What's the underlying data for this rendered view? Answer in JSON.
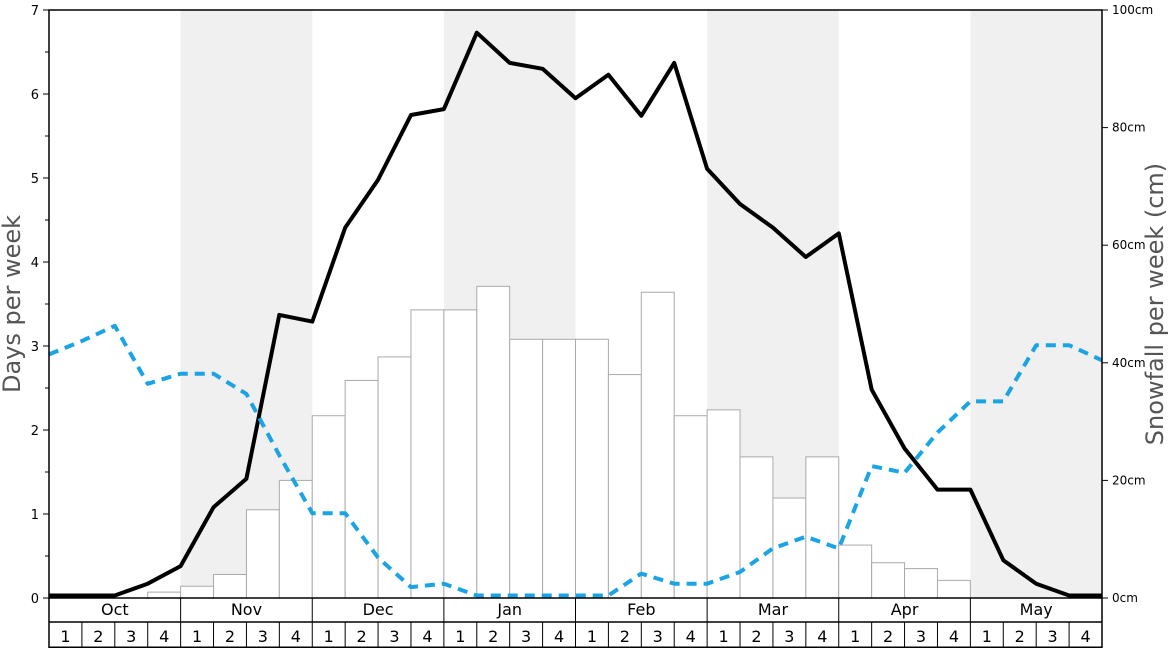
{
  "chart_data": {
    "type": "bar+line",
    "title": "",
    "ylabel": "Days per week",
    "ylabel_right": "Snowfall per week (cm)",
    "ylim": [
      0,
      7
    ],
    "ylim_right": [
      0,
      100
    ],
    "yticks": [
      "0",
      "1",
      "2",
      "3",
      "4",
      "5",
      "6",
      "7"
    ],
    "yticks_right": [
      "0cm",
      "20cm",
      "40cm",
      "60cm",
      "80cm",
      "100cm"
    ],
    "months": [
      "Oct",
      "Nov",
      "Dec",
      "Jan",
      "Feb",
      "Mar",
      "Apr",
      "May"
    ],
    "weeks": [
      "1",
      "2",
      "3",
      "4"
    ],
    "shaded_months": [
      "Nov",
      "Jan",
      "Mar",
      "May"
    ],
    "series": [
      {
        "type": "bar",
        "axis": "right",
        "values": [
          0,
          0,
          0,
          1,
          2,
          4,
          15,
          20,
          31,
          37,
          41,
          49,
          49,
          53,
          44,
          44,
          44,
          38,
          52,
          31,
          32,
          24,
          17,
          24,
          9,
          6,
          5,
          3,
          0,
          0,
          0,
          0
        ]
      },
      {
        "type": "line",
        "style": "solid",
        "color": "#000000",
        "axis": "left",
        "values": [
          0.03,
          0.03,
          0.03,
          0.17,
          0.38,
          1.08,
          1.42,
          3.37,
          3.29,
          4.41,
          4.98,
          5.75,
          5.82,
          6.73,
          6.37,
          6.3,
          5.95,
          6.23,
          5.74,
          6.37,
          5.11,
          4.69,
          4.41,
          4.06,
          4.34,
          2.48,
          1.78,
          1.29,
          1.29,
          0.45,
          0.17,
          0.03,
          0.03
        ]
      },
      {
        "type": "line",
        "style": "dashed",
        "color": "#1aa3e5",
        "axis": "left",
        "values": [
          2.9,
          3.06,
          3.24,
          2.55,
          2.67,
          2.67,
          2.43,
          1.7,
          1.01,
          1.01,
          0.48,
          0.13,
          0.17,
          0.03,
          0.03,
          0.03,
          0.03,
          0.03,
          0.29,
          0.17,
          0.17,
          0.31,
          0.59,
          0.73,
          0.59,
          1.57,
          1.49,
          1.97,
          2.34,
          2.34,
          3.01,
          3.01,
          2.83
        ]
      }
    ]
  }
}
